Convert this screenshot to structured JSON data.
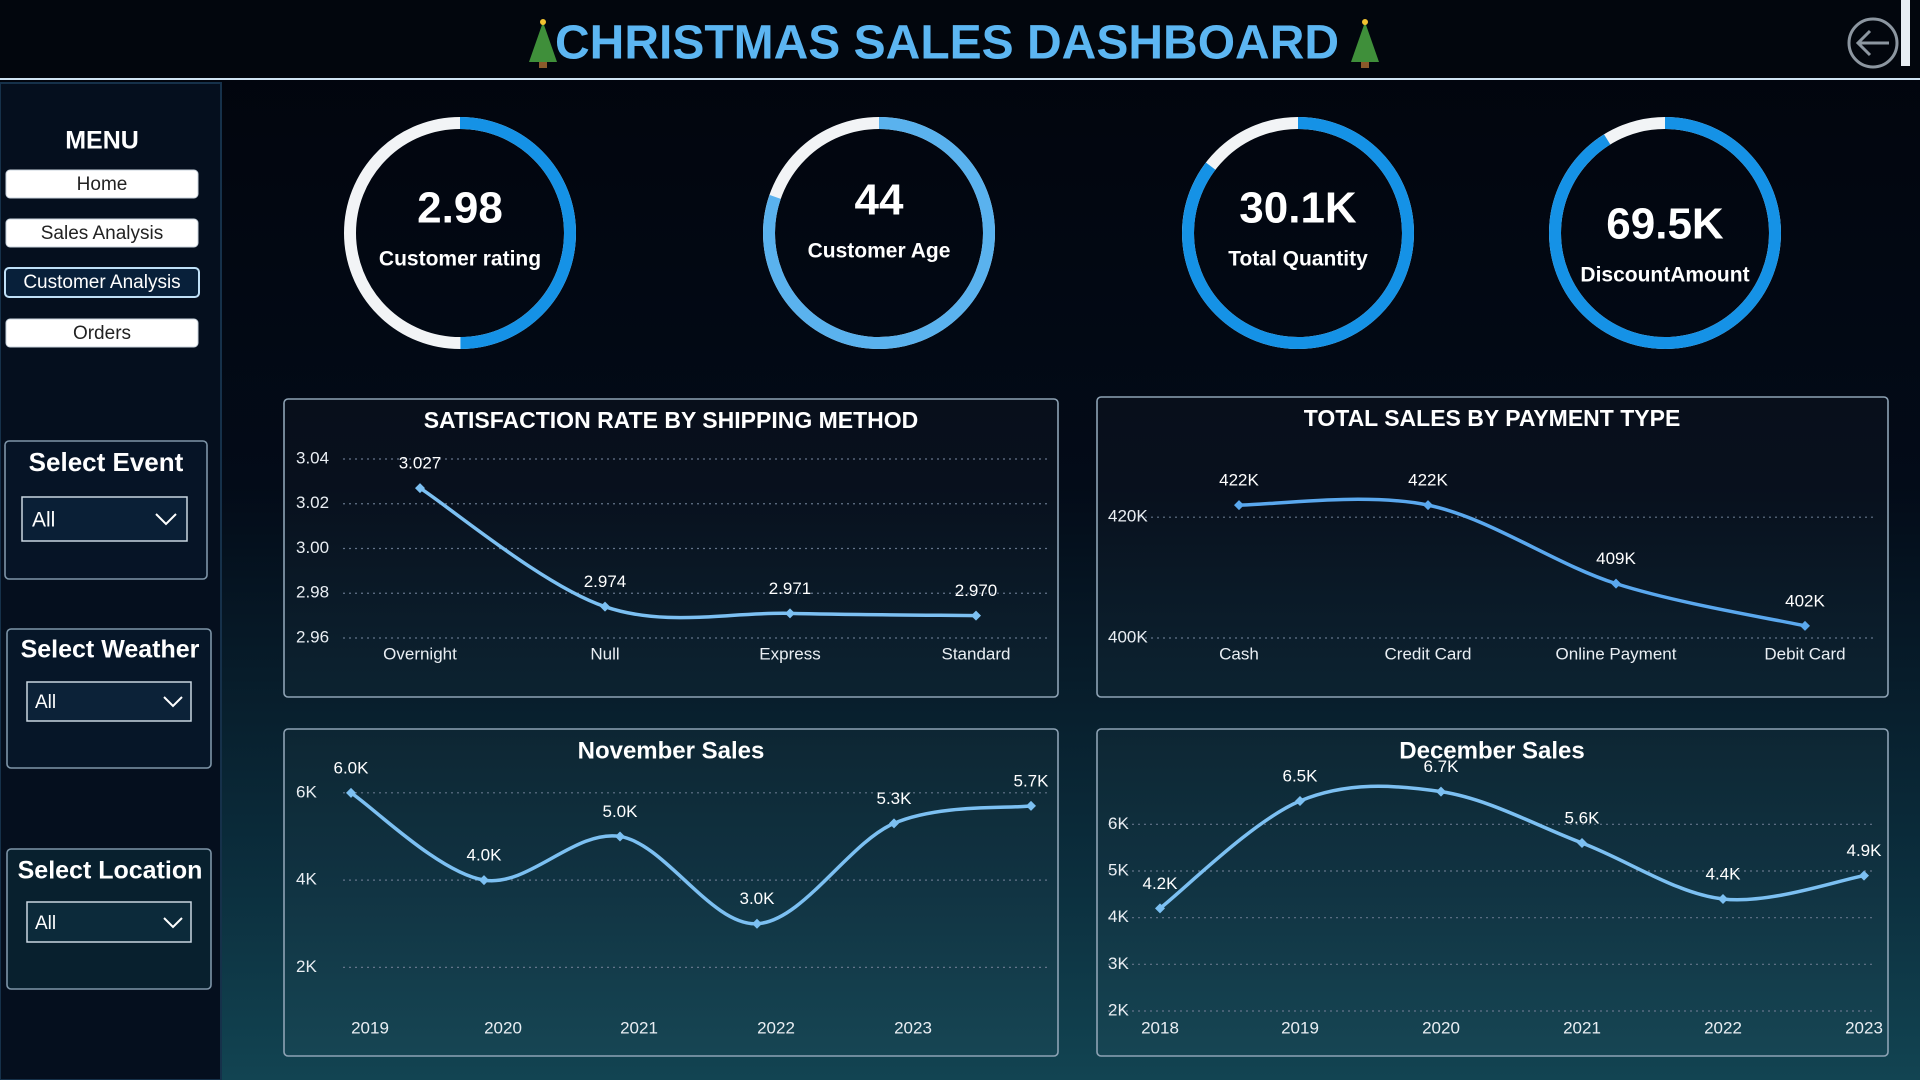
{
  "header": {
    "title": "CHRISTMAS SALES DASHBOARD"
  },
  "menu": {
    "title": "MENU",
    "items": [
      "Home",
      "Sales Analysis",
      "Customer Analysis",
      "Orders"
    ]
  },
  "filters": [
    {
      "label": "Select Event",
      "value": "All"
    },
    {
      "label": "Select Weather",
      "value": "All"
    },
    {
      "label": "Select Location",
      "value": "All"
    }
  ],
  "kpis": [
    {
      "value": 2.98,
      "label": "Customer rating"
    },
    {
      "value": 44,
      "label": "Customer Age"
    },
    {
      "value": "30.1K",
      "label": "Total Quantity"
    },
    {
      "value": "69.5K",
      "label": "DiscountAmount"
    }
  ],
  "chart_data": [
    {
      "type": "line",
      "title": "SATISFACTION RATE BY SHIPPING METHOD",
      "categories": [
        "Overnight",
        "Null",
        "Express",
        "Standard"
      ],
      "values": [
        3.027,
        2.974,
        2.971,
        2.97
      ],
      "value_labels": [
        "3.027",
        "2.974",
        "2.971",
        "2.970"
      ],
      "color": "#7cc0f2",
      "ylim": [
        2.96,
        3.04
      ],
      "yticks": [
        3.04,
        3.02,
        {
          "value": 3,
          "label": "3.00"
        },
        2.98,
        2.96
      ],
      "grid": true
    },
    {
      "type": "line",
      "title": "TOTAL SALES BY PAYMENT TYPE",
      "categories": [
        "Cash",
        "Credit Card",
        "Online Payment",
        "Debit Card"
      ],
      "values": [
        422000,
        422000,
        409000,
        402000
      ],
      "value_labels": [
        "422K",
        "422K",
        "409K",
        "402K"
      ],
      "color": "#5aa8ee",
      "ylim": [
        400000,
        425000
      ],
      "yticks": [
        {
          "value": 420000,
          "label": "420K"
        },
        {
          "value": 400000,
          "label": "400K"
        }
      ],
      "grid": true
    },
    {
      "type": "line",
      "title": "November Sales",
      "categories": [
        "2019",
        "2020",
        "2021",
        "2022",
        "2023",
        null
      ],
      "values": [
        6000,
        4000,
        5000,
        3000,
        5300,
        5700
      ],
      "value_labels": [
        "6.0K",
        "4.0K",
        "5.0K",
        "3.0K",
        "5.3K",
        "5.7K"
      ],
      "color": "#7cc0f2",
      "ylim": [
        1000,
        6500
      ],
      "yticks": [
        {
          "value": 6000,
          "label": "6K"
        },
        {
          "value": 4000,
          "label": "4K"
        },
        {
          "value": 2000,
          "label": "2K"
        }
      ],
      "grid": true
    },
    {
      "type": "line",
      "title": "December Sales",
      "categories": [
        "2018",
        "2019",
        "2020",
        "2021",
        "2022",
        "2023"
      ],
      "values": [
        4200,
        6500,
        6700,
        5600,
        4400,
        4900
      ],
      "value_labels": [
        "4.2K",
        "6.5K",
        "6.7K",
        "5.6K",
        "4.4K",
        "4.9K"
      ],
      "color": "#7cc0f2",
      "ylim": [
        2000,
        6800
      ],
      "yticks": [
        {
          "value": 6000,
          "label": "6K"
        },
        {
          "value": 5000,
          "label": "5K"
        },
        {
          "value": 4000,
          "label": "4K"
        },
        {
          "value": 3000,
          "label": "3K"
        },
        {
          "value": 2000,
          "label": "2K"
        }
      ],
      "grid": true
    }
  ]
}
